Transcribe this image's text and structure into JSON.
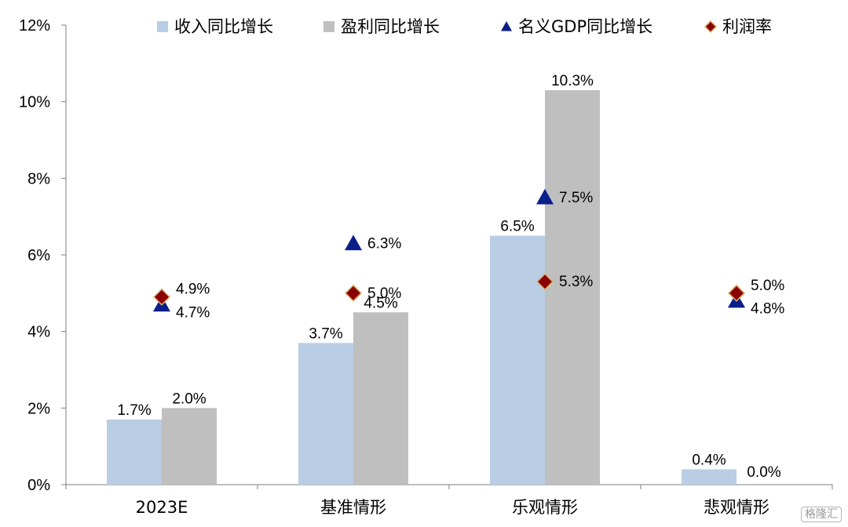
{
  "chart_data": {
    "type": "bar",
    "categories": [
      "2023E",
      "基准情形",
      "乐观情形",
      "悲观情形"
    ],
    "series": [
      {
        "name": "收入同比增长",
        "kind": "bar",
        "color": "#b9cde5",
        "values": [
          1.7,
          3.7,
          6.5,
          0.4
        ],
        "labels": [
          "1.7%",
          "3.7%",
          "6.5%",
          "0.4%"
        ]
      },
      {
        "name": "盈利同比增长",
        "kind": "bar",
        "color": "#bfbfbf",
        "values": [
          2.0,
          4.5,
          10.3,
          0.0
        ],
        "labels": [
          "2.0%",
          "4.5%",
          "10.3%",
          "0.0%"
        ]
      },
      {
        "name": "名义GDP同比增长",
        "kind": "triangle",
        "color": "#0b1f8a",
        "values": [
          4.7,
          6.3,
          7.5,
          4.8
        ],
        "labels": [
          "4.7%",
          "6.3%",
          "7.5%",
          "4.8%"
        ]
      },
      {
        "name": "利润率",
        "kind": "diamond",
        "color": "#8b0000",
        "values": [
          4.9,
          5.0,
          5.3,
          5.0
        ],
        "labels": [
          "4.9%",
          "5.0%",
          "5.3%",
          "5.0%"
        ]
      }
    ],
    "yticks": [
      "0%",
      "2%",
      "4%",
      "6%",
      "8%",
      "10%",
      "12%"
    ],
    "ylim": [
      0,
      12
    ],
    "grid": false,
    "legend_position": "top"
  },
  "watermark": "格隆汇"
}
